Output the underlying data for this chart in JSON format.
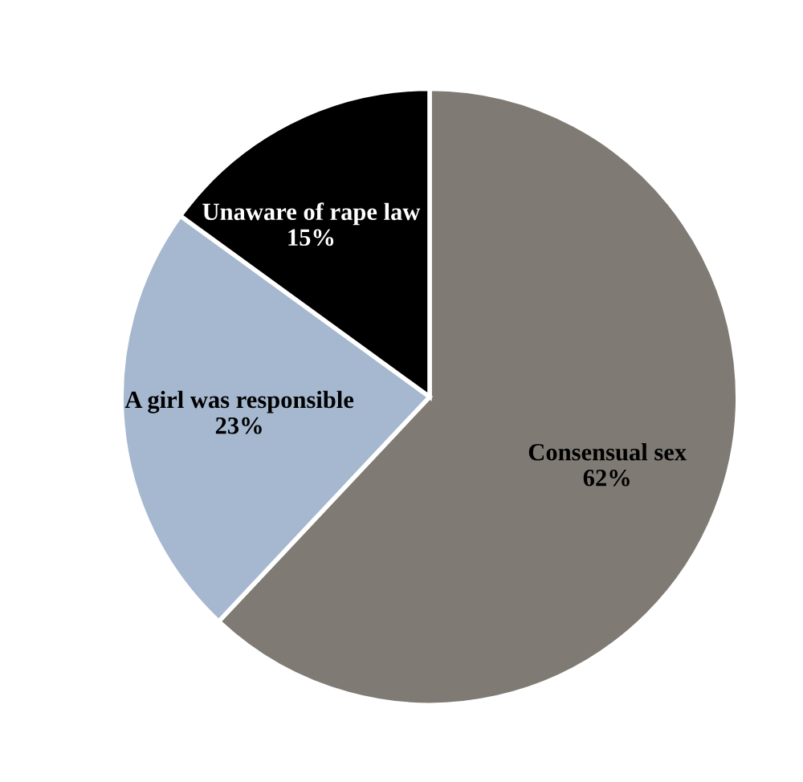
{
  "chart_data": {
    "type": "pie",
    "categories": [
      "Consensual sex",
      "A girl was responsible",
      "Unaware of rape law"
    ],
    "values": [
      62,
      23,
      15
    ],
    "colors": [
      "#7f7b74",
      "#a5b8cf",
      "#000000"
    ],
    "value_labels": [
      "62%",
      "23%",
      "15%"
    ],
    "legend": false
  }
}
